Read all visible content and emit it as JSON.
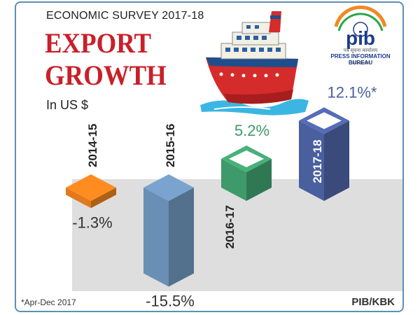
{
  "header": {
    "survey": "ECONOMIC SURVEY 2017-18",
    "title_line1": "EXPORT",
    "title_line2": "GROWTH"
  },
  "unit_label": "In US $",
  "footnote": "*Apr-Dec 2017",
  "credit": "PIB/KBK",
  "logo": {
    "mark": "pib",
    "hindi": "पत्र सूचना कार्यालय",
    "name": "PRESS INFORMATION BUREAU",
    "govt": "भारत सरकार"
  },
  "colors": {
    "title": "#c8202a",
    "bar_2014_15": "#e07a1c",
    "bar_2015_16": "#6a8fb4",
    "bar_2016_17": "#3e9a6a",
    "bar_2017_18": "#4a5f9e",
    "value_green": "#3e9a6a",
    "value_blue": "#4a5f9e"
  },
  "chart_data": {
    "type": "bar",
    "categories": [
      "2014-15",
      "2015-16",
      "2016-17",
      "2017-18"
    ],
    "values": [
      -1.3,
      -15.5,
      5.2,
      12.1
    ],
    "value_labels": [
      "-1.3%",
      "-15.5%",
      "5.2%",
      "12.1%*"
    ],
    "ylabel": "In US $"
  }
}
